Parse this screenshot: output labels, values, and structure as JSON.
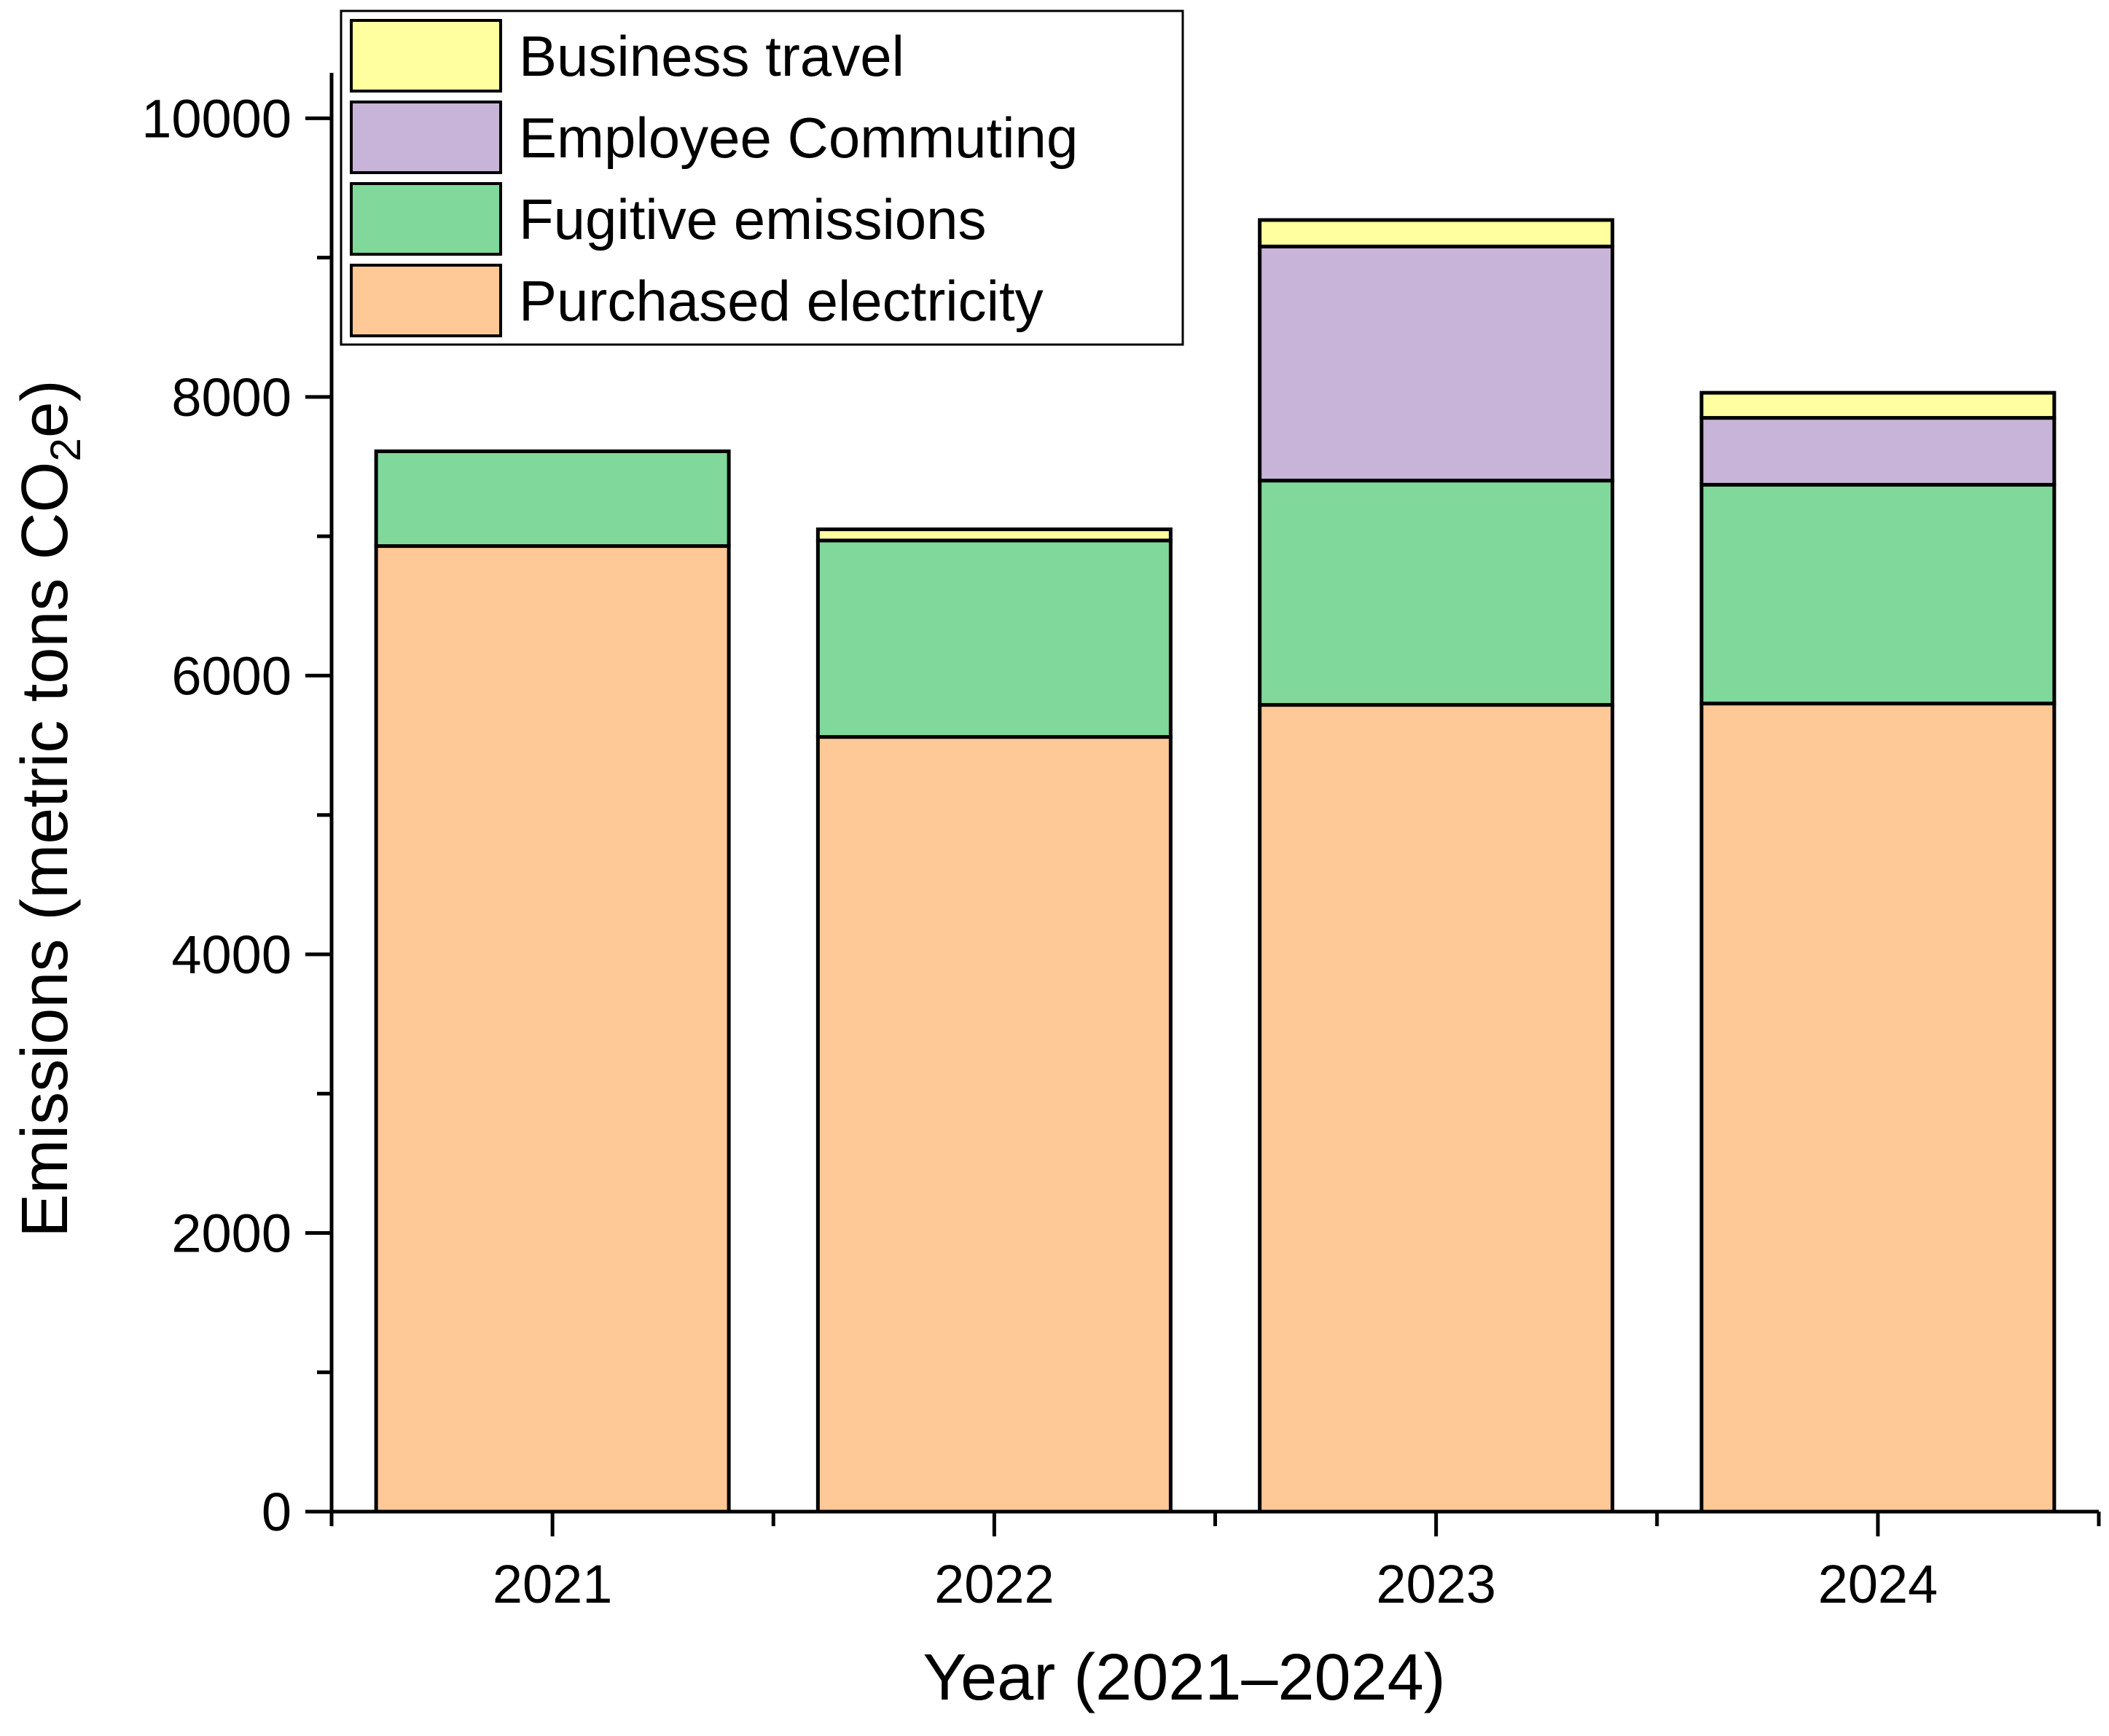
{
  "chart_data": {
    "type": "bar",
    "stacked": true,
    "categories": [
      "2021",
      "2022",
      "2023",
      "2024"
    ],
    "series": [
      {
        "name": "Purchased electricity",
        "color": "#FFC896",
        "values": [
          6930,
          5560,
          5790,
          5800
        ]
      },
      {
        "name": "Fugitive emissions",
        "color": "#80D89A",
        "values": [
          680,
          1410,
          1610,
          1570
        ]
      },
      {
        "name": "Employee Commuting",
        "color": "#C8B4D8",
        "values": [
          0,
          0,
          1680,
          480
        ]
      },
      {
        "name": "Business travel",
        "color": "#FFFFA0",
        "values": [
          0,
          80,
          190,
          180
        ]
      }
    ],
    "title": "",
    "xlabel": "Year (2021–2024)",
    "ylabel": {
      "main": "Emissions (metric tons CO",
      "subscript": "2",
      "suffix": "e)"
    },
    "ylim": [
      0,
      10300
    ],
    "yticks": [
      "0",
      "2000",
      "4000",
      "6000",
      "8000",
      "10000"
    ],
    "legend_position": "top-left",
    "legend_order": [
      "Business travel",
      "Employee Commuting",
      "Fugitive emissions",
      "Purchased electricity"
    ],
    "grid": false
  }
}
